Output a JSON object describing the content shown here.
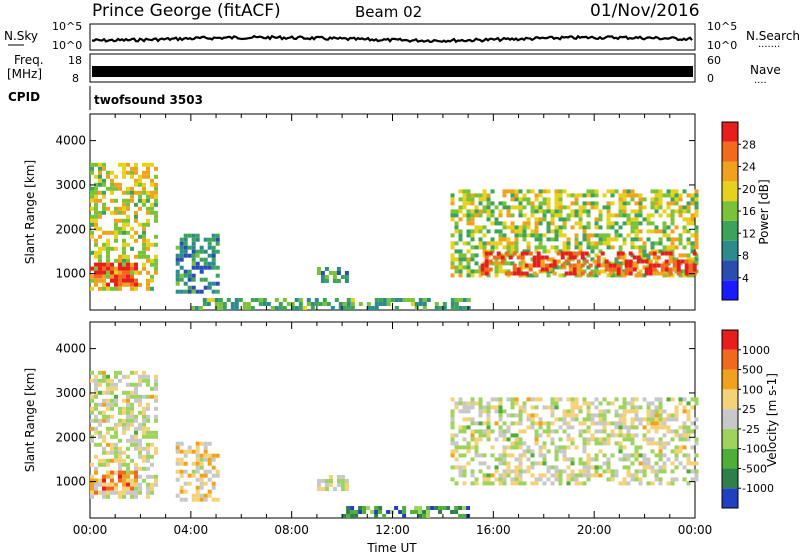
{
  "header": {
    "station": "Prince George (fitACF)",
    "beam": "Beam 02",
    "date": "01/Nov/2016"
  },
  "top_panels": {
    "nsky_label": "N.Sky",
    "nsky_ticks": [
      "10^5",
      "10^0"
    ],
    "nsearch_label": "N.Search",
    "nsearch_ticks": [
      "10^5",
      "10^0"
    ],
    "freq_label_1": "Freq.",
    "freq_label_2": "[MHz]",
    "freq_ticks": [
      "18",
      "8"
    ],
    "nave_label": "Nave",
    "nave_ticks": [
      "60",
      "0"
    ],
    "cpid_label": "CPID",
    "cpid_value": "twofsound 3503"
  },
  "chart_data": [
    {
      "type": "heatmap",
      "title": "",
      "xlabel": "",
      "ylabel": "Slant Range [km]",
      "colorbar_label": "Power [dB]",
      "xlim": [
        0,
        24
      ],
      "ylim": [
        180,
        4600
      ],
      "yticks": [
        "1000",
        "2000",
        "3000",
        "4000"
      ],
      "colorbar_ticks": [
        "4",
        "8",
        "12",
        "16",
        "20",
        "24",
        "28"
      ],
      "colorscale": [
        "#1a1aff",
        "#2a4db0",
        "#2e8b8b",
        "#3da35a",
        "#7cc238",
        "#e6d21e",
        "#f0a21e",
        "#f26a1e",
        "#e81e1e"
      ],
      "regions": [
        {
          "t0": 0.0,
          "t1": 2.6,
          "r0": 650,
          "r1": 3500,
          "level": 0.6
        },
        {
          "t0": 0.0,
          "t1": 1.9,
          "r0": 750,
          "r1": 1250,
          "level": 0.92
        },
        {
          "t0": 3.4,
          "t1": 5.0,
          "r0": 600,
          "r1": 1900,
          "level": 0.3
        },
        {
          "t0": 9.0,
          "t1": 10.2,
          "r0": 850,
          "r1": 1150,
          "level": 0.35
        },
        {
          "t0": 14.3,
          "t1": 24.0,
          "r0": 1000,
          "r1": 2900,
          "level": 0.55
        },
        {
          "t0": 15.5,
          "t1": 24.0,
          "r0": 1000,
          "r1": 1500,
          "level": 0.9
        },
        {
          "t0": 4.0,
          "t1": 15.0,
          "r0": 200,
          "r1": 450,
          "level": 0.4
        }
      ]
    },
    {
      "type": "heatmap",
      "title": "",
      "xlabel": "Time UT",
      "ylabel": "Slant Range [km]",
      "colorbar_label": "Velocity [m s-1]",
      "xlim": [
        0,
        24
      ],
      "ylim": [
        180,
        4600
      ],
      "xticks": [
        "00:00",
        "04:00",
        "08:00",
        "12:00",
        "16:00",
        "20:00",
        "00:00"
      ],
      "yticks": [
        "1000",
        "2000",
        "3000",
        "4000"
      ],
      "colorbar_ticks": [
        "1000",
        "500",
        "100",
        "25",
        "-25",
        "-100",
        "-500",
        "-1000"
      ],
      "colorscale": [
        "#2040c0",
        "#2e7f4a",
        "#4fae3a",
        "#9fd35f",
        "#c8c8c8",
        "#f3d27a",
        "#f0a21e",
        "#ef6a1e",
        "#e81e1e"
      ],
      "regions": [
        {
          "t0": 0.0,
          "t1": 2.6,
          "r0": 650,
          "r1": 3500,
          "level": 0.5
        },
        {
          "t0": 0.0,
          "t1": 1.9,
          "r0": 750,
          "r1": 1250,
          "level": 0.75
        },
        {
          "t0": 3.4,
          "t1": 5.0,
          "r0": 600,
          "r1": 1900,
          "level": 0.6
        },
        {
          "t0": 9.0,
          "t1": 10.2,
          "r0": 850,
          "r1": 1150,
          "level": 0.5
        },
        {
          "t0": 14.3,
          "t1": 24.0,
          "r0": 1000,
          "r1": 2900,
          "level": 0.5
        },
        {
          "t0": 10.0,
          "t1": 15.0,
          "r0": 200,
          "r1": 450,
          "level": 0.2
        }
      ]
    }
  ]
}
